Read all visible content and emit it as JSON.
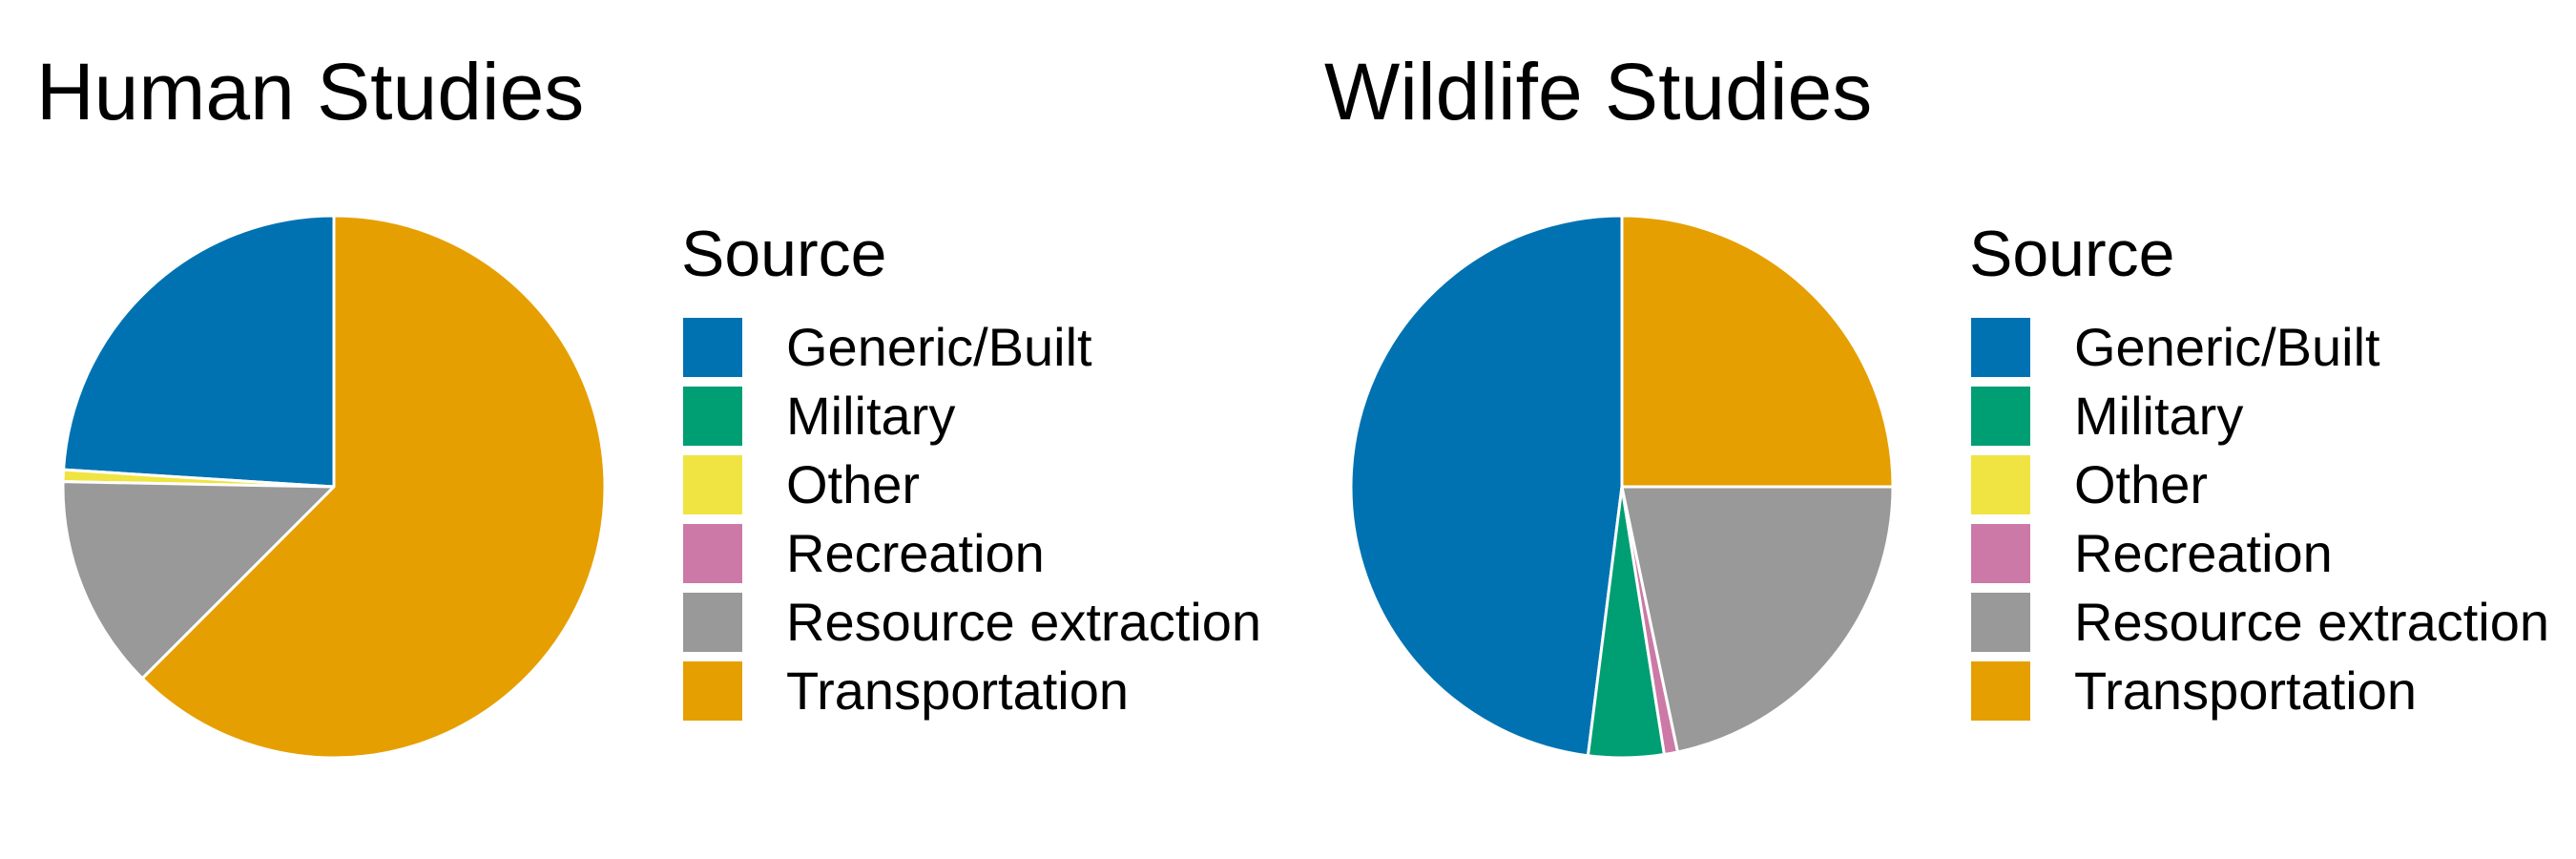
{
  "chart_data": [
    {
      "type": "pie",
      "title": "Human Studies",
      "legend_title": "Source",
      "legend_placement": "right",
      "categories": [
        "Generic/Built",
        "Military",
        "Other",
        "Recreation",
        "Resource extraction",
        "Transportation"
      ],
      "values": [
        24.0,
        0.0,
        0.7,
        0.0,
        12.8,
        62.5
      ],
      "colors": [
        "#0072B2",
        "#009E73",
        "#F0E442",
        "#CC79A7",
        "#999999",
        "#E69F00"
      ],
      "start_angle_deg": 0,
      "direction": "counterclockwise"
    },
    {
      "type": "pie",
      "title": "Wildlife Studies",
      "legend_title": "Source",
      "legend_placement": "right",
      "categories": [
        "Generic/Built",
        "Military",
        "Other",
        "Recreation",
        "Resource extraction",
        "Transportation"
      ],
      "values": [
        48.0,
        4.5,
        0.0,
        0.8,
        21.7,
        25.0
      ],
      "colors": [
        "#0072B2",
        "#009E73",
        "#F0E442",
        "#CC79A7",
        "#999999",
        "#E69F00"
      ],
      "start_angle_deg": 0,
      "direction": "counterclockwise"
    }
  ]
}
